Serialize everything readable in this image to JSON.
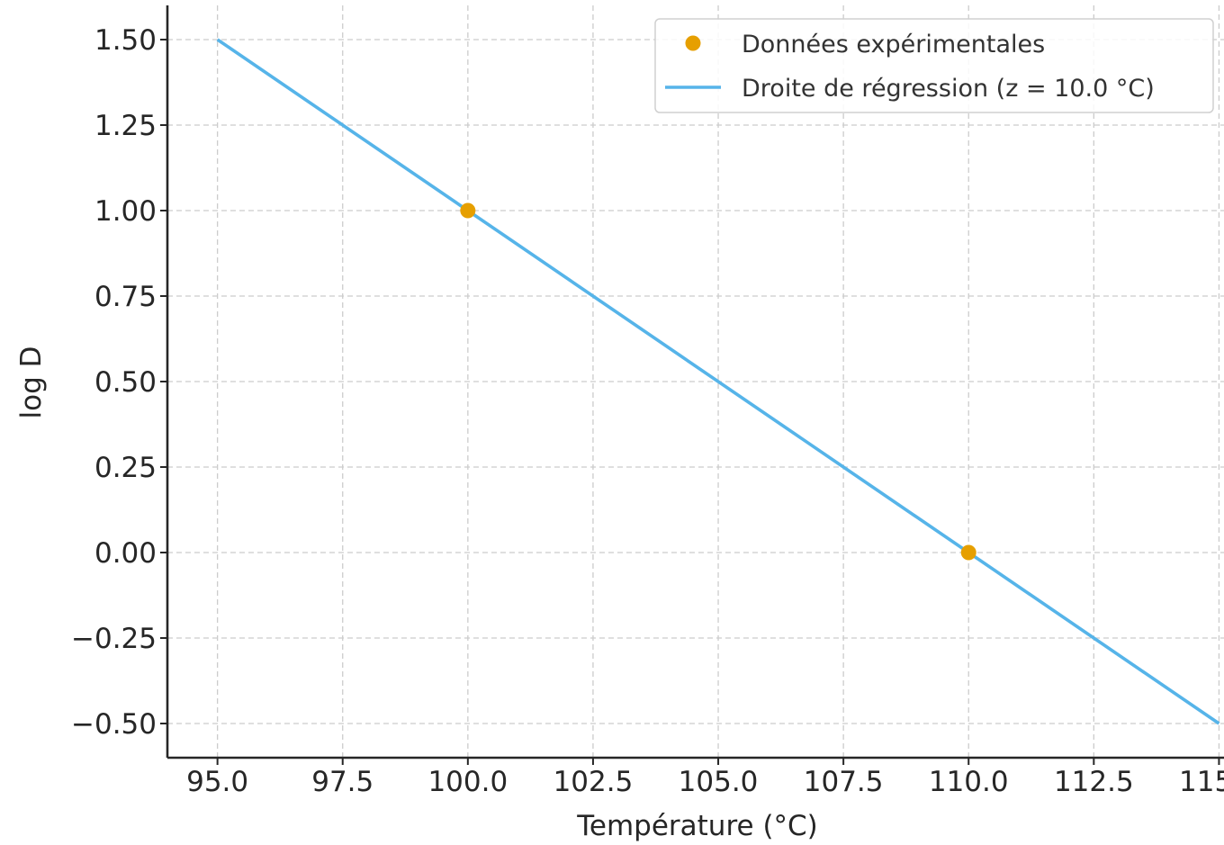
{
  "chart_data": {
    "type": "line",
    "xlabel": "Température (°C)",
    "ylabel": "log D",
    "xlim": [
      94.0,
      115.1
    ],
    "ylim": [
      -0.6,
      1.6
    ],
    "x_ticks": [
      95.0,
      97.5,
      100.0,
      102.5,
      105.0,
      107.5,
      110.0,
      112.5,
      115.0
    ],
    "x_tick_labels": [
      "95.0",
      "97.5",
      "100.0",
      "102.5",
      "105.0",
      "107.5",
      "110.0",
      "112.5",
      "115.0"
    ],
    "y_ticks": [
      1.5,
      1.25,
      1.0,
      0.75,
      0.5,
      0.25,
      0.0,
      -0.25,
      -0.5
    ],
    "y_tick_labels": [
      "1.50",
      "1.25",
      "1.00",
      "0.75",
      "0.50",
      "0.25",
      "0.00",
      "−0.25",
      "−0.50"
    ],
    "grid": true,
    "legend_position": "top-right",
    "series": [
      {
        "name": "Données expérimentales",
        "kind": "scatter",
        "color": "#E69F00",
        "x": [
          100.0,
          110.0
        ],
        "y": [
          1.0,
          0.0
        ]
      },
      {
        "name": "Droite de régression (z = 10.0 °C)",
        "kind": "line",
        "color": "#56B4E9",
        "x": [
          95.0,
          115.0
        ],
        "y": [
          1.5,
          -0.5
        ]
      }
    ]
  }
}
